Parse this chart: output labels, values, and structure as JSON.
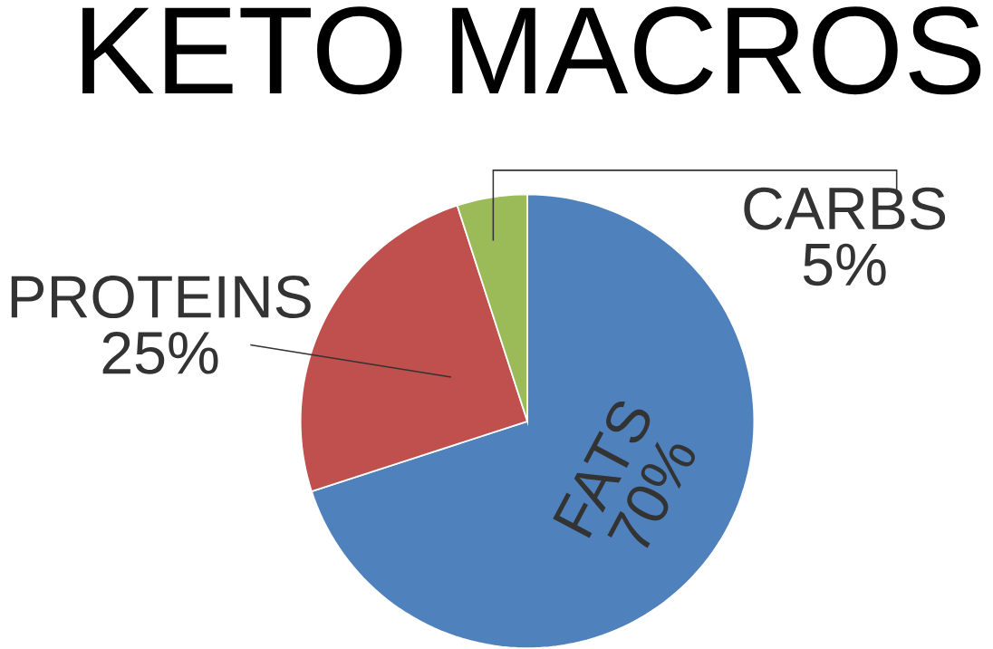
{
  "chart_data": {
    "type": "pie",
    "title": "KETO MACROS",
    "categories": [
      "FATS",
      "PROTEINS",
      "CARBS"
    ],
    "values": [
      70,
      25,
      5
    ],
    "value_labels": [
      "70%",
      "25%",
      "5%"
    ],
    "colors": [
      "#4f81bd",
      "#c0504d",
      "#9bbb59"
    ]
  }
}
